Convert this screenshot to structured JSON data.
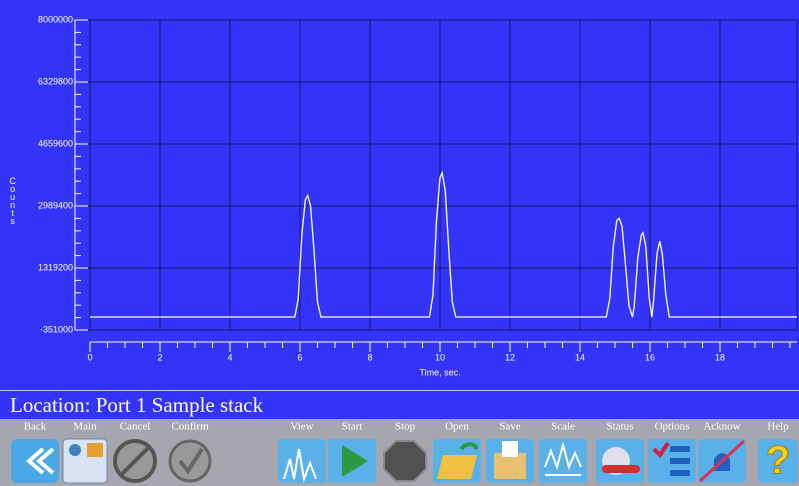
{
  "chart_data": {
    "type": "line",
    "y_label": "Counts",
    "x_label": "Time, sec.",
    "x": [
      0,
      5.85,
      5.95,
      6.05,
      6.15,
      6.22,
      6.3,
      6.4,
      6.5,
      6.6,
      9.7,
      9.8,
      9.9,
      10.0,
      10.06,
      10.15,
      10.25,
      10.35,
      10.45,
      14.75,
      14.85,
      14.95,
      15.05,
      15.12,
      15.2,
      15.3,
      15.4,
      15.5,
      15.55,
      15.65,
      15.75,
      15.8,
      15.88,
      15.98,
      16.05,
      16.1,
      16.2,
      16.28,
      16.35,
      16.45,
      16.55,
      20.2
    ],
    "values": [
      0,
      0,
      500000,
      2200000,
      3150000,
      3270000,
      3000000,
      1800000,
      400000,
      0,
      0,
      600000,
      2600000,
      3750000,
      3880000,
      3400000,
      1800000,
      400000,
      0,
      0,
      500000,
      1900000,
      2600000,
      2655000,
      2450000,
      1400000,
      300000,
      0,
      300000,
      1600000,
      2200000,
      2270000,
      1900000,
      500000,
      0,
      400000,
      1700000,
      2040000,
      1700000,
      600000,
      0,
      0
    ],
    "color": "#ffffff",
    "xlim": [
      0,
      20.2
    ],
    "xticks": [
      0,
      2,
      4,
      6,
      8,
      10,
      12,
      14,
      16,
      18
    ],
    "ylim": [
      -351000,
      8000000
    ],
    "yticks": [
      -351000,
      1319200,
      2989400,
      4659600,
      6329800,
      8000000
    ],
    "grid": true
  },
  "status": {
    "location": "Location: Port 1 Sample stack"
  },
  "toolbar": {
    "buttons": [
      "Back",
      "Main",
      "Cancel",
      "Confirm",
      "View",
      "Start",
      "Stop",
      "Open",
      "Save",
      "Scale",
      "Status",
      "Options",
      "Acknow",
      "Help"
    ]
  }
}
